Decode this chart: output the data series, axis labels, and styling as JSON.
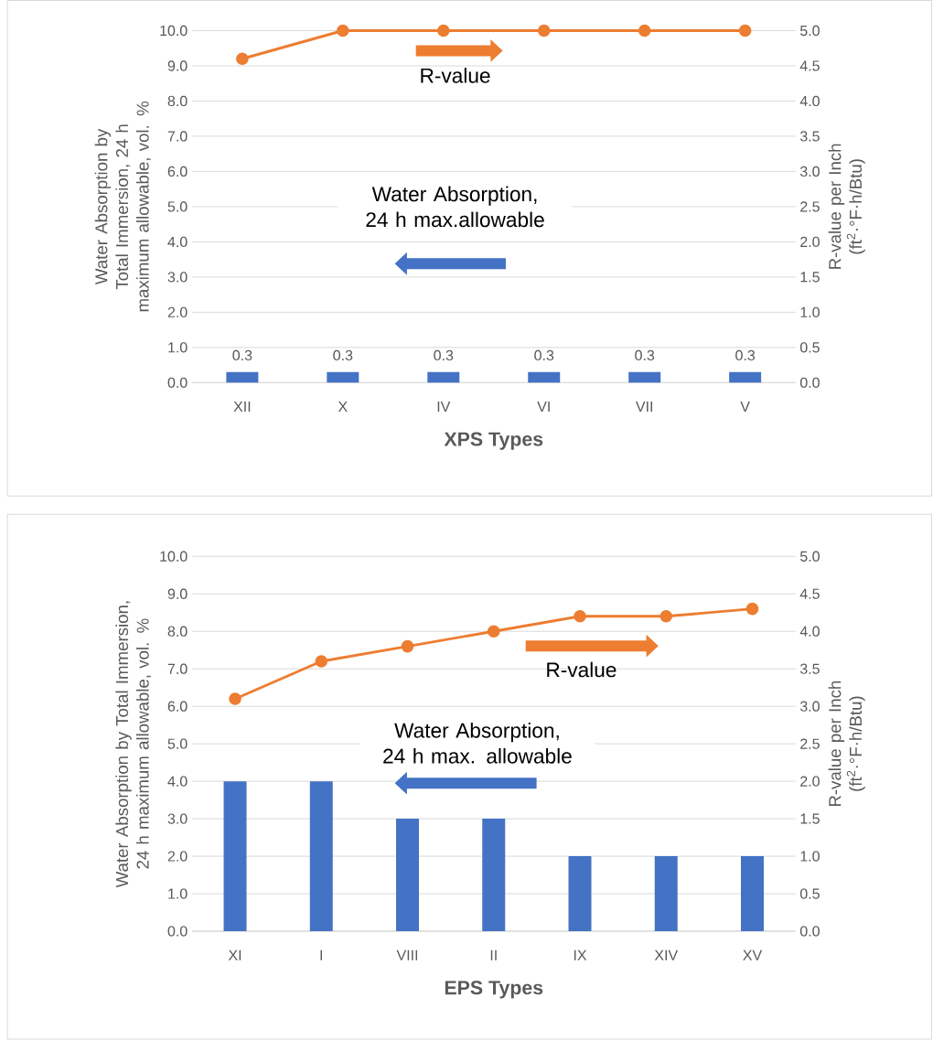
{
  "chart_data": [
    {
      "type": "bar",
      "categories": [
        "XII",
        "X",
        "IV",
        "VI",
        "VII",
        "V"
      ],
      "xlabel": "XPS Types",
      "ylabel": "Water Absorption by Total Immersion, 24 h maximum allowable, vol. %",
      "y2label": "R-value per Inch (ft$^{2}$·°F·h/Btu)",
      "ylim": [
        0,
        10
      ],
      "yticks": [
        {
          "value": 0,
          "label": "0.0"
        },
        {
          "value": 1,
          "label": "1.0"
        },
        {
          "value": 2,
          "label": "2.0"
        },
        {
          "value": 3,
          "label": "3.0"
        },
        {
          "value": 4,
          "label": "4.0"
        },
        {
          "value": 5,
          "label": "5.0"
        },
        {
          "value": 6,
          "label": "6.0"
        },
        {
          "value": 7,
          "label": "7.0"
        },
        {
          "value": 8,
          "label": "8.0"
        },
        {
          "value": 9,
          "label": "9.0"
        },
        {
          "value": 10,
          "label": "10.0"
        }
      ],
      "y2lim": [
        0,
        5
      ],
      "y2ticks": [
        {
          "value": 0,
          "label": "0.0"
        },
        {
          "value": 0.5,
          "label": "0.5"
        },
        {
          "value": 1,
          "label": "1.0"
        },
        {
          "value": 1.5,
          "label": "1.5"
        },
        {
          "value": 2,
          "label": "2.0"
        },
        {
          "value": 2.5,
          "label": "2.5"
        },
        {
          "value": 3,
          "label": "3.0"
        },
        {
          "value": 3.5,
          "label": "3.5"
        },
        {
          "value": 4,
          "label": "4.0"
        },
        {
          "value": 4.5,
          "label": "4.5"
        },
        {
          "value": 5,
          "label": "5.0"
        }
      ],
      "grid": "y",
      "marker": "circle",
      "line_style": "solid",
      "annotations": [
        "R-value",
        "Water Absorption, 24 h max.allowable"
      ],
      "series": [
        {
          "color": "#4472c4",
          "values": [
            0.3,
            0.3,
            0.3,
            0.3,
            0.3,
            0.3
          ],
          "value_labels": [
            "0.3",
            "0.3",
            "0.3",
            "0.3",
            "0.3",
            "0.3"
          ]
        },
        {
          "type": "line",
          "axis": "y2",
          "color": "#ed7d31",
          "values": [
            4.6,
            5.0,
            5.0,
            5.0,
            5.0,
            5.0
          ]
        }
      ]
    },
    {
      "type": "bar",
      "categories": [
        "XI",
        "I",
        "VIII",
        "II",
        "IX",
        "XIV",
        "XV"
      ],
      "xlabel": "EPS Types",
      "ylabel": "Water Absorption by Total Immersion, 24 h maximum allowable, vol. %",
      "y2label": "R-value per Inch (ft$^{2}$·°F·h/Btu)",
      "ylim": [
        0,
        10
      ],
      "yticks": [
        {
          "value": 0,
          "label": "0.0"
        },
        {
          "value": 1,
          "label": "1.0"
        },
        {
          "value": 2,
          "label": "2.0"
        },
        {
          "value": 3,
          "label": "3.0"
        },
        {
          "value": 4,
          "label": "4.0"
        },
        {
          "value": 5,
          "label": "5.0"
        },
        {
          "value": 6,
          "label": "6.0"
        },
        {
          "value": 7,
          "label": "7.0"
        },
        {
          "value": 8,
          "label": "8.0"
        },
        {
          "value": 9,
          "label": "9.0"
        },
        {
          "value": 10,
          "label": "10.0"
        }
      ],
      "y2lim": [
        0,
        5
      ],
      "y2ticks": [
        {
          "value": 0,
          "label": "0.0"
        },
        {
          "value": 0.5,
          "label": "0.5"
        },
        {
          "value": 1,
          "label": "1.0"
        },
        {
          "value": 1.5,
          "label": "1.5"
        },
        {
          "value": 2,
          "label": "2.0"
        },
        {
          "value": 2.5,
          "label": "2.5"
        },
        {
          "value": 3,
          "label": "3.0"
        },
        {
          "value": 3.5,
          "label": "3.5"
        },
        {
          "value": 4,
          "label": "4.0"
        },
        {
          "value": 4.5,
          "label": "4.5"
        },
        {
          "value": 5,
          "label": "5.0"
        }
      ],
      "grid": "y",
      "marker": "circle",
      "line_style": "solid",
      "annotations": [
        "R-value",
        "Water Absorption, 24 h max. allowable"
      ],
      "series": [
        {
          "color": "#4472c4",
          "values": [
            4,
            4,
            3,
            3,
            2,
            2,
            2
          ]
        },
        {
          "type": "line",
          "axis": "y2",
          "color": "#ed7d31",
          "values": [
            3.1,
            3.6,
            3.8,
            4.0,
            4.2,
            4.2,
            4.3
          ]
        }
      ]
    }
  ]
}
